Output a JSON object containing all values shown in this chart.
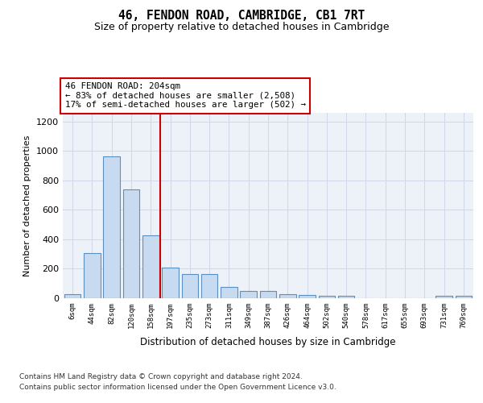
{
  "title1": "46, FENDON ROAD, CAMBRIDGE, CB1 7RT",
  "title2": "Size of property relative to detached houses in Cambridge",
  "xlabel": "Distribution of detached houses by size in Cambridge",
  "ylabel": "Number of detached properties",
  "bar_labels": [
    "6sqm",
    "44sqm",
    "82sqm",
    "120sqm",
    "158sqm",
    "197sqm",
    "235sqm",
    "273sqm",
    "311sqm",
    "349sqm",
    "387sqm",
    "426sqm",
    "464sqm",
    "502sqm",
    "540sqm",
    "578sqm",
    "617sqm",
    "655sqm",
    "693sqm",
    "731sqm",
    "769sqm"
  ],
  "bar_heights": [
    25,
    305,
    965,
    740,
    430,
    210,
    165,
    165,
    75,
    50,
    50,
    30,
    20,
    15,
    15,
    0,
    0,
    0,
    0,
    15,
    15
  ],
  "bar_color": "#c8daf0",
  "bar_edgecolor": "#5a8fc2",
  "ylim": [
    0,
    1260
  ],
  "yticks": [
    0,
    200,
    400,
    600,
    800,
    1000,
    1200
  ],
  "vline_x": 4.5,
  "vline_color": "#cc0000",
  "annotation_line1": "46 FENDON ROAD: 204sqm",
  "annotation_line2": "← 83% of detached houses are smaller (2,508)",
  "annotation_line3": "17% of semi-detached houses are larger (502) →",
  "footnote1": "Contains HM Land Registry data © Crown copyright and database right 2024.",
  "footnote2": "Contains public sector information licensed under the Open Government Licence v3.0.",
  "grid_color": "#d0d8e8",
  "bg_color": "#edf2f9"
}
